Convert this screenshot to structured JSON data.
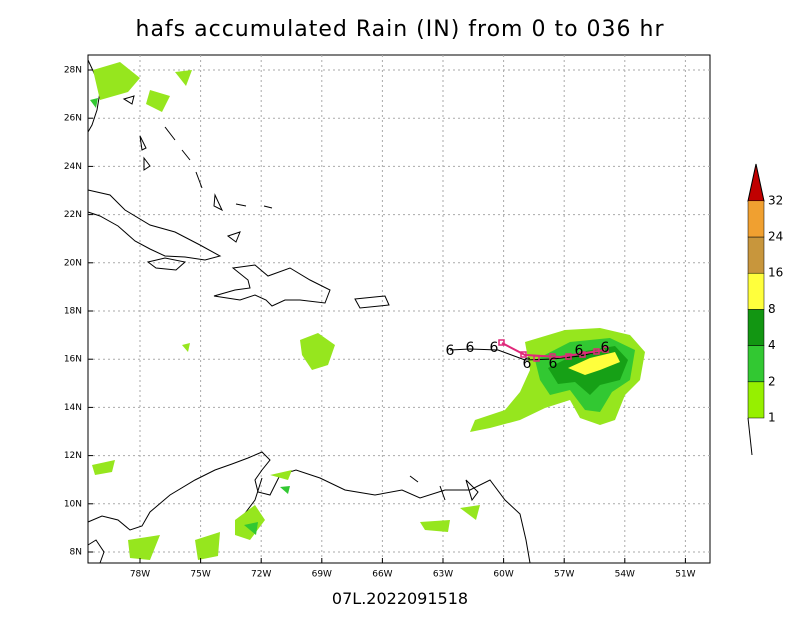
{
  "title": "hafs accumulated Rain (IN) from 0 to 036 hr",
  "footer": "07L.2022091518",
  "lon_labels": [
    "78W",
    "75W",
    "72W",
    "69W",
    "66W",
    "63W",
    "60W",
    "57W",
    "54W",
    "51W"
  ],
  "lat_labels": [
    "8N",
    "10N",
    "12N",
    "14N",
    "16N",
    "18N",
    "20N",
    "22N",
    "24N",
    "26N",
    "28N"
  ],
  "colorbar": {
    "levels": [
      1,
      2,
      4,
      8,
      16,
      24,
      32
    ]
  }
}
